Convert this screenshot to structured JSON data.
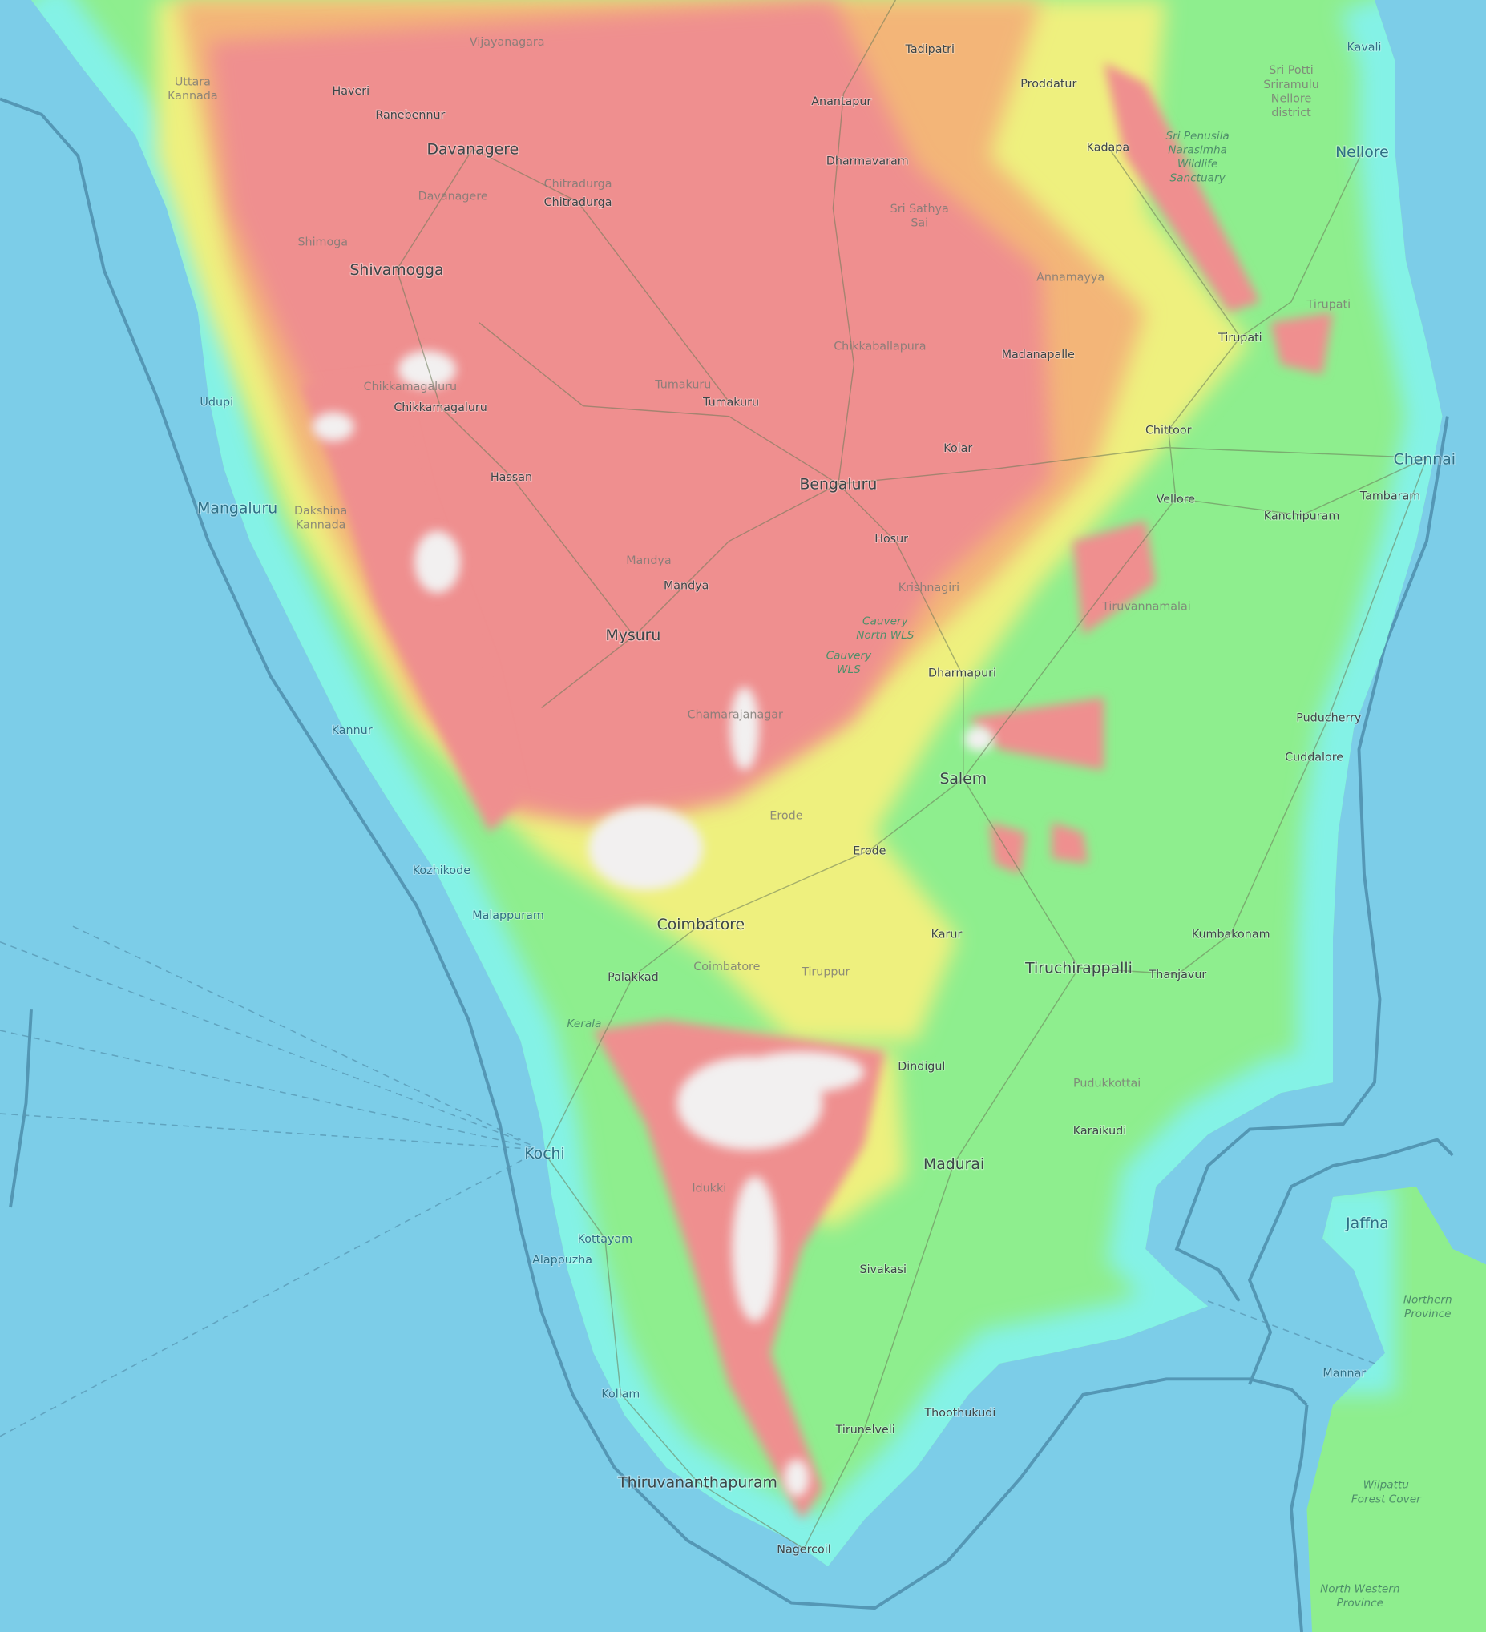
{
  "map": {
    "style": "topographic",
    "colors": {
      "sea": "#7ccde8",
      "lowland_coast": "#84f2e6",
      "lowland": "#8eee8e",
      "mid": "#eef07e",
      "upper": "#f3b578",
      "high": "#ef8f8f",
      "peak": "#f2f0f0",
      "boundary": "#4a8aa8"
    },
    "labels": [
      {
        "lines": [
          "Vijayanagara"
        ],
        "kind": "region"
      },
      {
        "lines": [
          "Uttara",
          "Kannada"
        ],
        "kind": "region"
      },
      {
        "lines": [
          "Haveri"
        ],
        "kind": "city"
      },
      {
        "lines": [
          "Ranebennur"
        ],
        "kind": "city"
      },
      {
        "lines": [
          "Davanagere"
        ],
        "kind": "city-major"
      },
      {
        "lines": [
          "Chitradurga"
        ],
        "kind": "region"
      },
      {
        "lines": [
          "Chitradurga"
        ],
        "kind": "city"
      },
      {
        "lines": [
          "Davanagere"
        ],
        "kind": "region"
      },
      {
        "lines": [
          "Tadipatri"
        ],
        "kind": "city"
      },
      {
        "lines": [
          "Proddatur"
        ],
        "kind": "city"
      },
      {
        "lines": [
          "Anantapur"
        ],
        "kind": "city"
      },
      {
        "lines": [
          "Kavali"
        ],
        "kind": "city"
      },
      {
        "lines": [
          "Sri Potti",
          "Sriramulu",
          "Nellore",
          "district"
        ],
        "kind": "region"
      },
      {
        "lines": [
          "Kadapa"
        ],
        "kind": "city"
      },
      {
        "lines": [
          "Sri Penusila",
          "Narasimha",
          "Wildlife",
          "Sanctuary"
        ],
        "kind": "protected-area"
      },
      {
        "lines": [
          "Nellore"
        ],
        "kind": "city-major"
      },
      {
        "lines": [
          "Dharmavaram"
        ],
        "kind": "city"
      },
      {
        "lines": [
          "Sri Sathya",
          "Sai"
        ],
        "kind": "region"
      },
      {
        "lines": [
          "Shimoga"
        ],
        "kind": "region"
      },
      {
        "lines": [
          "Shivamogga"
        ],
        "kind": "city-major"
      },
      {
        "lines": [
          "Annamayya"
        ],
        "kind": "region"
      },
      {
        "lines": [
          "Tirupati"
        ],
        "kind": "region"
      },
      {
        "lines": [
          "Tirupati"
        ],
        "kind": "city"
      },
      {
        "lines": [
          "Chikkaballapura"
        ],
        "kind": "region"
      },
      {
        "lines": [
          "Madanapalle"
        ],
        "kind": "city"
      },
      {
        "lines": [
          "Chikkamagaluru"
        ],
        "kind": "region"
      },
      {
        "lines": [
          "Chikkamagaluru"
        ],
        "kind": "city"
      },
      {
        "lines": [
          "Tumakuru"
        ],
        "kind": "region"
      },
      {
        "lines": [
          "Tumakuru"
        ],
        "kind": "city"
      },
      {
        "lines": [
          "Udupi"
        ],
        "kind": "city"
      },
      {
        "lines": [
          "Chittoor"
        ],
        "kind": "city"
      },
      {
        "lines": [
          "Kolar"
        ],
        "kind": "city"
      },
      {
        "lines": [
          "Chennai"
        ],
        "kind": "city-major"
      },
      {
        "lines": [
          "Hassan"
        ],
        "kind": "city"
      },
      {
        "lines": [
          "Bengaluru"
        ],
        "kind": "city-major"
      },
      {
        "lines": [
          "Vellore"
        ],
        "kind": "city"
      },
      {
        "lines": [
          "Tambaram"
        ],
        "kind": "city"
      },
      {
        "lines": [
          "Mangaluru"
        ],
        "kind": "city-major"
      },
      {
        "lines": [
          "Dakshina",
          "Kannada"
        ],
        "kind": "region"
      },
      {
        "lines": [
          "Kanchipuram"
        ],
        "kind": "city"
      },
      {
        "lines": [
          "Hosur"
        ],
        "kind": "city"
      },
      {
        "lines": [
          "Mandya"
        ],
        "kind": "region"
      },
      {
        "lines": [
          "Mandya"
        ],
        "kind": "city"
      },
      {
        "lines": [
          "Krishnagiri"
        ],
        "kind": "region"
      },
      {
        "lines": [
          "Tiruvannamalai"
        ],
        "kind": "region"
      },
      {
        "lines": [
          "Cauvery",
          "North WLS"
        ],
        "kind": "protected-area"
      },
      {
        "lines": [
          "Mysuru"
        ],
        "kind": "city-major"
      },
      {
        "lines": [
          "Cauvery",
          "WLS"
        ],
        "kind": "protected-area"
      },
      {
        "lines": [
          "Dharmapuri"
        ],
        "kind": "city"
      },
      {
        "lines": [
          "Chamarajanagar"
        ],
        "kind": "region"
      },
      {
        "lines": [
          "Puducherry"
        ],
        "kind": "city"
      },
      {
        "lines": [
          "Kannur"
        ],
        "kind": "city"
      },
      {
        "lines": [
          "Cuddalore"
        ],
        "kind": "city"
      },
      {
        "lines": [
          "Salem"
        ],
        "kind": "city-major"
      },
      {
        "lines": [
          "Erode"
        ],
        "kind": "region"
      },
      {
        "lines": [
          "Erode"
        ],
        "kind": "city"
      },
      {
        "lines": [
          "Kozhikode"
        ],
        "kind": "city"
      },
      {
        "lines": [
          "Malappuram"
        ],
        "kind": "city"
      },
      {
        "lines": [
          "Coimbatore"
        ],
        "kind": "city-major"
      },
      {
        "lines": [
          "Karur"
        ],
        "kind": "city"
      },
      {
        "lines": [
          "Kumbakonam"
        ],
        "kind": "city"
      },
      {
        "lines": [
          "Coimbatore"
        ],
        "kind": "region"
      },
      {
        "lines": [
          "Tiruppur"
        ],
        "kind": "region"
      },
      {
        "lines": [
          "Tiruchirappalli"
        ],
        "kind": "city-major"
      },
      {
        "lines": [
          "Thanjavur"
        ],
        "kind": "city"
      },
      {
        "lines": [
          "Palakkad"
        ],
        "kind": "city"
      },
      {
        "lines": [
          "Kerala"
        ],
        "kind": "protected-area"
      },
      {
        "lines": [
          "Dindigul"
        ],
        "kind": "city"
      },
      {
        "lines": [
          "Pudukkottai"
        ],
        "kind": "region"
      },
      {
        "lines": [
          "Karaikudi"
        ],
        "kind": "city"
      },
      {
        "lines": [
          "Kochi"
        ],
        "kind": "city-major"
      },
      {
        "lines": [
          "Madurai"
        ],
        "kind": "city-major"
      },
      {
        "lines": [
          "Idukki"
        ],
        "kind": "region"
      },
      {
        "lines": [
          "Jaffna"
        ],
        "kind": "city-major"
      },
      {
        "lines": [
          "Kottayam"
        ],
        "kind": "city"
      },
      {
        "lines": [
          "Alappuzha"
        ],
        "kind": "city"
      },
      {
        "lines": [
          "Sivakasi"
        ],
        "kind": "city"
      },
      {
        "lines": [
          "Northern",
          "Province"
        ],
        "kind": "protected-area"
      },
      {
        "lines": [
          "Mannar"
        ],
        "kind": "city"
      },
      {
        "lines": [
          "Kollam"
        ],
        "kind": "city"
      },
      {
        "lines": [
          "Thoothukudi"
        ],
        "kind": "city"
      },
      {
        "lines": [
          "Tirunelveli"
        ],
        "kind": "city"
      },
      {
        "lines": [
          "Wilpattu",
          "Forest Cover"
        ],
        "kind": "protected-area"
      },
      {
        "lines": [
          "Thiruvananthapuram"
        ],
        "kind": "city-major"
      },
      {
        "lines": [
          "Nagercoil"
        ],
        "kind": "city"
      },
      {
        "lines": [
          "North Western",
          "Province"
        ],
        "kind": "protected-area"
      }
    ]
  }
}
